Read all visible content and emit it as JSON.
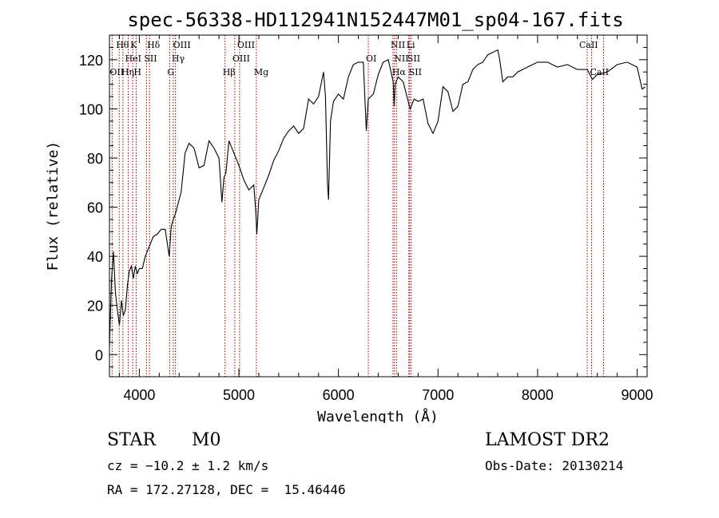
{
  "chart_data": {
    "type": "line",
    "title": "spec-56338-HD112941N152447M01_sp04-167.fits",
    "xlabel": "Wavelength (Å)",
    "ylabel": "Flux (relative)",
    "xlim": [
      3700,
      9100
    ],
    "ylim": [
      -9,
      130
    ],
    "xticks": [
      4000,
      5000,
      6000,
      7000,
      8000,
      9000
    ],
    "yticks": [
      0,
      20,
      40,
      60,
      80,
      100,
      120
    ],
    "grid": false,
    "series": [
      {
        "x": [
          3700,
          3720,
          3740,
          3760,
          3780,
          3800,
          3820,
          3840,
          3860,
          3880,
          3900,
          3920,
          3940,
          3960,
          3980,
          4000,
          4030,
          4060,
          4100,
          4140,
          4180,
          4220,
          4260,
          4300,
          4320,
          4340,
          4360,
          4380,
          4420,
          4460,
          4500,
          4550,
          4600,
          4650,
          4700,
          4750,
          4800,
          4830,
          4850,
          4870,
          4900,
          4950,
          5000,
          5050,
          5100,
          5150,
          5170,
          5180,
          5200,
          5250,
          5300,
          5350,
          5400,
          5450,
          5500,
          5550,
          5600,
          5650,
          5700,
          5750,
          5800,
          5850,
          5870,
          5890,
          5900,
          5920,
          5950,
          6000,
          6050,
          6100,
          6150,
          6200,
          6250,
          6280,
          6300,
          6350,
          6400,
          6450,
          6500,
          6550,
          6560,
          6570,
          6600,
          6650,
          6700,
          6720,
          6760,
          6800,
          6850,
          6900,
          6950,
          7000,
          7050,
          7100,
          7150,
          7200,
          7250,
          7300,
          7350,
          7400,
          7450,
          7500,
          7550,
          7600,
          7620,
          7650,
          7700,
          7750,
          7800,
          7900,
          8000,
          8100,
          8200,
          8300,
          8400,
          8500,
          8550,
          8600,
          8700,
          8800,
          8900,
          9000,
          9050,
          9080
        ],
        "y": [
          3,
          30,
          42,
          25,
          18,
          12,
          22,
          16,
          18,
          28,
          34,
          36,
          31,
          36,
          33,
          35,
          35,
          40,
          44,
          48,
          49,
          51,
          51,
          40,
          52,
          55,
          57,
          60,
          66,
          82,
          86,
          84,
          76,
          77,
          87,
          84,
          80,
          62,
          72,
          74,
          87,
          82,
          77,
          71,
          67,
          69,
          58,
          49,
          63,
          68,
          73,
          79,
          83,
          88,
          91,
          93,
          90,
          92,
          104,
          102,
          105,
          115,
          105,
          70,
          63,
          95,
          103,
          106,
          104,
          113,
          118,
          119,
          119,
          91,
          104,
          106,
          114,
          119,
          120,
          111,
          101,
          110,
          113,
          111,
          103,
          100,
          104,
          103,
          104,
          94,
          90,
          95,
          109,
          107,
          99,
          101,
          110,
          111,
          116,
          118,
          119,
          122,
          123,
          124,
          120,
          111,
          113,
          113,
          115,
          117,
          119,
          119,
          117,
          118,
          116,
          116,
          112,
          114,
          115,
          118,
          119,
          117,
          108,
          109
        ]
      }
    ],
    "line_markers": [
      {
        "label": "Hθ",
        "x": 3798,
        "row": 1,
        "dx": -4
      },
      {
        "label": "OII",
        "x": 3727,
        "row": 3,
        "dx": -3
      },
      {
        "label": "Hη",
        "x": 3835,
        "row": 3,
        "dx": -2
      },
      {
        "label": "HeI",
        "x": 3889,
        "row": 2,
        "dx": -4
      },
      {
        "label": "K",
        "x": 3934,
        "row": 1,
        "dx": -3
      },
      {
        "label": "H",
        "x": 3968,
        "row": 3,
        "dx": -3
      },
      {
        "label": "SII",
        "x": 4072,
        "row": 2,
        "dx": -3
      },
      {
        "label": "Hδ",
        "x": 4102,
        "row": 1,
        "dx": -3
      },
      {
        "label": "G",
        "x": 4305,
        "row": 3,
        "dx": -3
      },
      {
        "label": "OIII",
        "x": 4363,
        "row": 1,
        "dx": -3
      },
      {
        "label": "Hγ",
        "x": 4341,
        "row": 2,
        "dx": -2
      },
      {
        "label": "Hβ",
        "x": 4861,
        "row": 3,
        "dx": -3
      },
      {
        "label": "OIII",
        "x": 4959,
        "row": 2,
        "dx": -3
      },
      {
        "label": "OIII",
        "x": 5007,
        "row": 1,
        "dx": -3
      },
      {
        "label": "Mg",
        "x": 5175,
        "row": 3,
        "dx": -3
      },
      {
        "label": "OI",
        "x": 6300,
        "row": 2,
        "dx": -3
      },
      {
        "label": "NII",
        "x": 6548,
        "row": 1,
        "dx": -3
      },
      {
        "label": "Hα",
        "x": 6563,
        "row": 3,
        "dx": -3
      },
      {
        "label": "NII",
        "x": 6583,
        "row": 2,
        "dx": -3
      },
      {
        "label": "Li",
        "x": 6707,
        "row": 1,
        "dx": -3
      },
      {
        "label": "SII",
        "x": 6716,
        "row": 2,
        "dx": -3
      },
      {
        "label": "SII",
        "x": 6731,
        "row": 3,
        "dx": -3
      },
      {
        "label": "CaII",
        "x": 8498,
        "row": 1,
        "dx": -10
      },
      {
        "label": "CaII",
        "x": 8542,
        "row": 3,
        "dx": -2
      },
      {
        "label": "",
        "x": 8662,
        "row": 0,
        "dx": 0
      }
    ]
  },
  "info": {
    "object_class": "STAR",
    "subclass": "M0",
    "redshift": "cz = −10.2 ± 1.2 km/s",
    "coords": "RA = 172.27128, DEC =  15.46446",
    "survey": "LAMOST DR2",
    "obs_date": "Obs-Date: 20130214"
  },
  "colors": {
    "line_marker": "#8b0000",
    "spectrum": "#000000",
    "axes": "#000000"
  }
}
